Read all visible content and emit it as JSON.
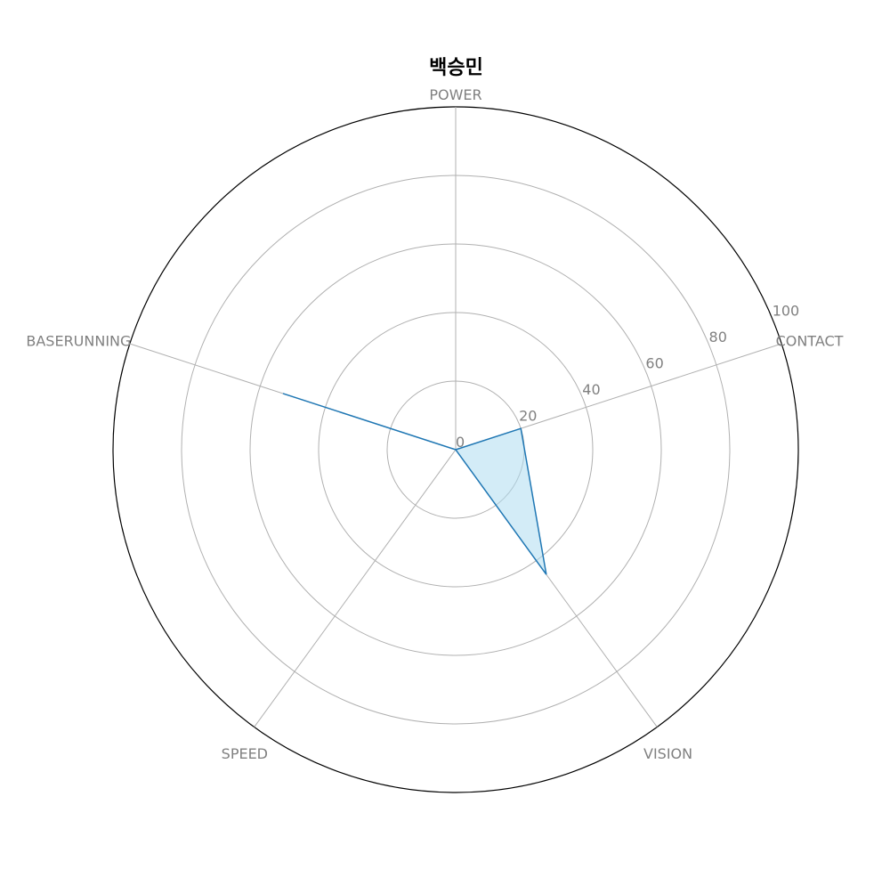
{
  "chart_data": {
    "type": "radar",
    "title": "백승민",
    "axes": [
      "POWER",
      "CONTACT",
      "VISION",
      "SPEED",
      "BASERUNNING"
    ],
    "series": [
      {
        "values": [
          0,
          20,
          45,
          0,
          53
        ],
        "line_color": "#1f77b4",
        "fill_color": "#aedcf0"
      }
    ],
    "rlim": [
      0,
      100
    ],
    "r_ticks": [
      0,
      20,
      40,
      60,
      80,
      100
    ],
    "grid": true,
    "label_color": "#808080",
    "grid_color": "#b0b0b0"
  }
}
